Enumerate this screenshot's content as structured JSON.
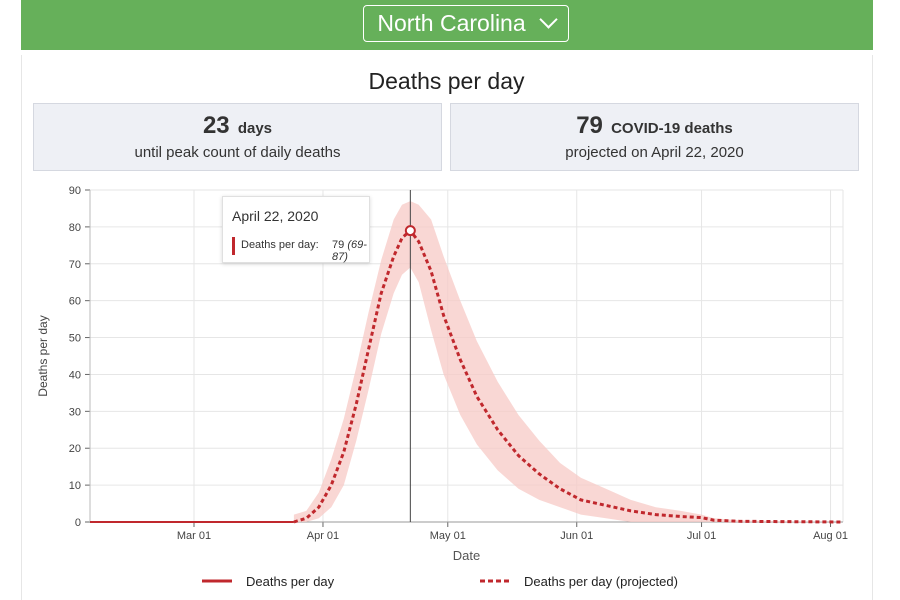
{
  "header": {
    "state_select": "North Carolina"
  },
  "title": "Deaths per day",
  "stats": [
    {
      "value": "23",
      "unit": "days",
      "caption": "until peak count of daily deaths"
    },
    {
      "value": "79",
      "unit": "COVID-19 deaths",
      "caption": "projected on April 22, 2020"
    }
  ],
  "tooltip": {
    "date": "April 22, 2020",
    "label": "Deaths per day:",
    "value": "79",
    "range": "(69-87)"
  },
  "colors": {
    "banner": "#66b05a",
    "series": "#c0282d",
    "band": "#f7c9c6"
  },
  "chart_data": {
    "type": "line",
    "ylabel": "Deaths per day",
    "xlabel": "Date",
    "ylim": [
      0,
      90
    ],
    "xlim": [
      "2020-02-05",
      "2020-08-04"
    ],
    "yticks": [
      0,
      10,
      20,
      30,
      40,
      50,
      60,
      70,
      80,
      90
    ],
    "xticks": [
      {
        "date": "2020-03-01",
        "label": "Mar 01"
      },
      {
        "date": "2020-04-01",
        "label": "Apr 01"
      },
      {
        "date": "2020-05-01",
        "label": "May 01"
      },
      {
        "date": "2020-06-01",
        "label": "Jun 01"
      },
      {
        "date": "2020-07-01",
        "label": "Jul 01"
      },
      {
        "date": "2020-08-01",
        "label": "Aug 01"
      }
    ],
    "grid": true,
    "legend_position": "bottom",
    "highlight_date": "2020-04-22",
    "series": [
      {
        "name": "Deaths per day",
        "points": [
          [
            "2020-02-05",
            0
          ],
          [
            "2020-03-25",
            0
          ]
        ]
      },
      {
        "name": "Deaths per day (projected)",
        "points": [
          [
            "2020-03-25",
            0
          ],
          [
            "2020-03-28",
            1
          ],
          [
            "2020-03-31",
            4
          ],
          [
            "2020-04-03",
            10
          ],
          [
            "2020-04-06",
            19
          ],
          [
            "2020-04-09",
            32
          ],
          [
            "2020-04-12",
            47
          ],
          [
            "2020-04-15",
            62
          ],
          [
            "2020-04-18",
            72
          ],
          [
            "2020-04-20",
            77
          ],
          [
            "2020-04-22",
            79
          ],
          [
            "2020-04-24",
            76
          ],
          [
            "2020-04-27",
            68
          ],
          [
            "2020-04-30",
            56
          ],
          [
            "2020-05-04",
            44
          ],
          [
            "2020-05-08",
            34
          ],
          [
            "2020-05-13",
            25
          ],
          [
            "2020-05-18",
            18
          ],
          [
            "2020-05-23",
            13
          ],
          [
            "2020-05-28",
            9
          ],
          [
            "2020-06-02",
            6
          ],
          [
            "2020-06-08",
            4.5
          ],
          [
            "2020-06-14",
            3
          ],
          [
            "2020-06-20",
            2
          ],
          [
            "2020-06-26",
            1.5
          ],
          [
            "2020-07-01",
            1.2
          ],
          [
            "2020-07-04",
            0.5
          ],
          [
            "2020-07-10",
            0.2
          ],
          [
            "2020-07-20",
            0.1
          ],
          [
            "2020-08-04",
            0
          ]
        ]
      }
    ],
    "band": {
      "name": "uncertainty",
      "points": [
        [
          "2020-03-25",
          0,
          2
        ],
        [
          "2020-03-28",
          0,
          3
        ],
        [
          "2020-03-31",
          1,
          8
        ],
        [
          "2020-04-03",
          4,
          17
        ],
        [
          "2020-04-06",
          10,
          28
        ],
        [
          "2020-04-09",
          22,
          42
        ],
        [
          "2020-04-12",
          36,
          57
        ],
        [
          "2020-04-15",
          51,
          71
        ],
        [
          "2020-04-18",
          62,
          82
        ],
        [
          "2020-04-20",
          67,
          86
        ],
        [
          "2020-04-22",
          69,
          87
        ],
        [
          "2020-04-24",
          65,
          86
        ],
        [
          "2020-04-27",
          52,
          82
        ],
        [
          "2020-04-30",
          40,
          72
        ],
        [
          "2020-05-04",
          29,
          60
        ],
        [
          "2020-05-08",
          21,
          49
        ],
        [
          "2020-05-13",
          14,
          38
        ],
        [
          "2020-05-18",
          9,
          29
        ],
        [
          "2020-05-23",
          6,
          22
        ],
        [
          "2020-05-28",
          4,
          16
        ],
        [
          "2020-06-02",
          2,
          12
        ],
        [
          "2020-06-08",
          1,
          9
        ],
        [
          "2020-06-14",
          0,
          6
        ],
        [
          "2020-06-20",
          0,
          4
        ],
        [
          "2020-06-26",
          0,
          3
        ],
        [
          "2020-07-01",
          0,
          2
        ],
        [
          "2020-07-04",
          0,
          1
        ],
        [
          "2020-07-10",
          0,
          0.5
        ],
        [
          "2020-07-20",
          0,
          0.2
        ],
        [
          "2020-08-04",
          0,
          0
        ]
      ]
    }
  }
}
